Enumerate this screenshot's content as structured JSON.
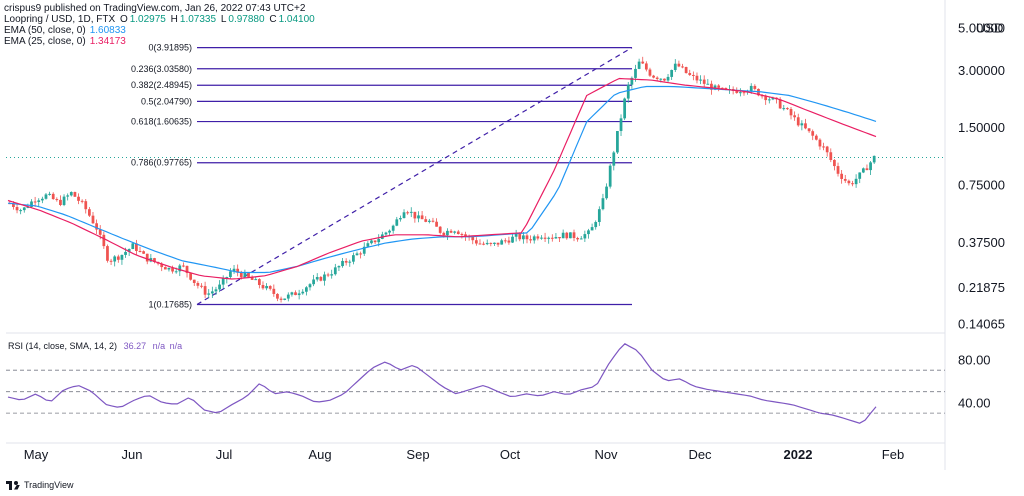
{
  "credit": "crispus9 published on TradingView.com, Jan 26, 2022 07:43 UTC+2",
  "symbol_line": {
    "symbol": "Loopring / USD, 1D, FTX",
    "open_label": "O",
    "open": "1.02975",
    "high_label": "H",
    "high": "1.07335",
    "low_label": "L",
    "low": "0.97880",
    "close_label": "C",
    "close": "1.04100"
  },
  "ema_legend": [
    {
      "label": "EMA (50, close, 0)",
      "value": "1.60833",
      "color": "#2196f3"
    },
    {
      "label": "EMA (25, close, 0)",
      "value": "1.34173",
      "color": "#e91e63"
    }
  ],
  "currency_label": "USD",
  "rsi_legend": {
    "label": "RSI (14, close, SMA, 14, 2)",
    "value": "36.27",
    "na1": "n/a",
    "na2": "n/a"
  },
  "footer_brand": "TradingView",
  "colors": {
    "up": "#26a69a",
    "down": "#ef5350",
    "fib": "#3f1fa8",
    "rsi": "#7e57c2",
    "ema50": "#2196f3",
    "ema25": "#e91e63"
  },
  "chart_data": {
    "type": "candlestick",
    "y_scale": "log",
    "price_axis_ticks": [
      "5.00000",
      "3.00000",
      "1.50000",
      "0.75000",
      "0.37500",
      "0.21875",
      "0.14065"
    ],
    "x_axis_labels": [
      "May",
      "Jun",
      "Jul",
      "Aug",
      "Sep",
      "Oct",
      "Nov",
      "Dec",
      "2022",
      "Feb"
    ],
    "last_price": 1.041,
    "fibonacci": [
      {
        "label": "0(3.91895)",
        "ratio": 0,
        "price": 3.91895
      },
      {
        "label": "0.236(3.03580)",
        "ratio": 0.236,
        "price": 3.0358
      },
      {
        "label": "0.382(2.48945)",
        "ratio": 0.382,
        "price": 2.48945
      },
      {
        "label": "0.5(2.04790)",
        "ratio": 0.5,
        "price": 2.0479
      },
      {
        "label": "0.618(1.60635)",
        "ratio": 0.618,
        "price": 1.60635
      },
      {
        "label": "0.786(0.97765)",
        "ratio": 0.786,
        "price": 0.97765
      },
      {
        "label": "1(0.17685)",
        "ratio": 1,
        "price": 0.17685
      }
    ],
    "price_path": [
      0.6,
      0.55,
      0.63,
      0.66,
      0.6,
      0.68,
      0.58,
      0.45,
      0.3,
      0.32,
      0.36,
      0.31,
      0.29,
      0.27,
      0.28,
      0.23,
      0.2,
      0.22,
      0.27,
      0.25,
      0.23,
      0.21,
      0.19,
      0.2,
      0.22,
      0.24,
      0.26,
      0.29,
      0.32,
      0.36,
      0.4,
      0.45,
      0.57,
      0.5,
      0.48,
      0.42,
      0.44,
      0.4,
      0.37,
      0.36,
      0.38,
      0.4,
      0.39,
      0.41,
      0.4,
      0.41,
      0.4,
      0.42,
      0.6,
      1.2,
      2.4,
      3.3,
      2.8,
      2.7,
      3.2,
      2.8,
      2.6,
      2.4,
      2.3,
      2.35,
      2.4,
      2.2,
      2.05,
      1.8,
      1.55,
      1.35,
      1.15,
      0.88,
      0.75,
      0.86,
      1.04
    ],
    "ema50_path": [
      0.6,
      0.58,
      0.52,
      0.45,
      0.39,
      0.34,
      0.3,
      0.28,
      0.26,
      0.26,
      0.28,
      0.31,
      0.34,
      0.37,
      0.39,
      0.4,
      0.4,
      0.41,
      0.42,
      0.7,
      1.6,
      2.25,
      2.45,
      2.45,
      2.4,
      2.35,
      2.3,
      2.2,
      2.0,
      1.8,
      1.61
    ],
    "ema25_path": [
      0.62,
      0.55,
      0.47,
      0.39,
      0.32,
      0.28,
      0.25,
      0.24,
      0.25,
      0.28,
      0.33,
      0.38,
      0.41,
      0.41,
      0.4,
      0.41,
      0.42,
      0.9,
      2.2,
      2.7,
      2.65,
      2.5,
      2.4,
      2.3,
      2.1,
      1.8,
      1.55,
      1.34
    ],
    "rsi_axis_ticks": [
      "80.00",
      "40.00"
    ],
    "rsi_levels": {
      "upper": 70,
      "middle": 50,
      "lower": 30
    },
    "rsi_path": [
      45,
      42,
      48,
      40,
      52,
      56,
      50,
      38,
      35,
      42,
      47,
      40,
      38,
      45,
      33,
      30,
      38,
      45,
      58,
      48,
      50,
      46,
      40,
      42,
      48,
      60,
      72,
      78,
      70,
      75,
      65,
      55,
      48,
      52,
      56,
      50,
      45,
      48,
      46,
      50,
      47,
      52,
      55,
      78,
      95,
      88,
      70,
      60,
      62,
      55,
      52,
      50,
      48,
      46,
      42,
      40,
      38,
      34,
      30,
      28,
      24,
      20,
      36
    ]
  }
}
